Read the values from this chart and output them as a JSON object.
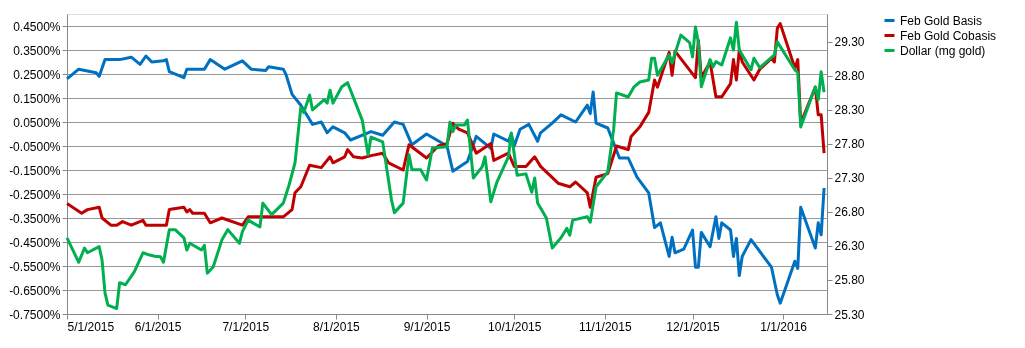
{
  "chart_data": {
    "type": "line",
    "legend": "right",
    "grid": "y",
    "line_style": "solid",
    "marker": "none",
    "xlim": [
      "2015-05-01",
      "2016-01-16"
    ],
    "xticks": [
      {
        "value": "2015-05-01",
        "label": "5/1/2015"
      },
      {
        "value": "2015-06-01",
        "label": "6/1/2015"
      },
      {
        "value": "2015-07-01",
        "label": "7/1/2015"
      },
      {
        "value": "2015-08-01",
        "label": "8/1/2015"
      },
      {
        "value": "2015-09-01",
        "label": "9/1/2015"
      },
      {
        "value": "2015-10-01",
        "label": "10/1/2015"
      },
      {
        "value": "2015-11-01",
        "label": "11/1/2015"
      },
      {
        "value": "2015-12-01",
        "label": "12/1/2015"
      },
      {
        "value": "2016-01-01",
        "label": "1/1/2016"
      }
    ],
    "ylim": [
      -0.75,
      0.5
    ],
    "yticks": [
      {
        "value": 0.45,
        "label": "0.4500%"
      },
      {
        "value": 0.35,
        "label": "0.3500%"
      },
      {
        "value": 0.25,
        "label": "0.2500%"
      },
      {
        "value": 0.15,
        "label": "0.1500%"
      },
      {
        "value": 0.05,
        "label": "0.0500%"
      },
      {
        "value": -0.05,
        "label": "-0.0500%"
      },
      {
        "value": -0.15,
        "label": "-0.1500%"
      },
      {
        "value": -0.25,
        "label": "-0.2500%"
      },
      {
        "value": -0.35,
        "label": "-0.3500%"
      },
      {
        "value": -0.45,
        "label": "-0.4500%"
      },
      {
        "value": -0.55,
        "label": "-0.5500%"
      },
      {
        "value": -0.65,
        "label": "-0.6500%"
      },
      {
        "value": -0.75,
        "label": "-0.7500%"
      }
    ],
    "y2lim": [
      25.3,
      29.71
    ],
    "y2ticks": [
      {
        "value": 25.3,
        "label": "25.30"
      },
      {
        "value": 25.8,
        "label": "25.80"
      },
      {
        "value": 26.3,
        "label": "26.30"
      },
      {
        "value": 26.8,
        "label": "26.80"
      },
      {
        "value": 27.3,
        "label": "27.30"
      },
      {
        "value": 27.8,
        "label": "27.80"
      },
      {
        "value": 28.3,
        "label": "28.30"
      },
      {
        "value": 28.8,
        "label": "28.80"
      },
      {
        "value": 29.3,
        "label": "29.30"
      }
    ],
    "series": [
      {
        "name": "Feb Gold Basis",
        "color": "#0070c0",
        "x": [
          "2015-05-01",
          "2015-05-05",
          "2015-05-11",
          "2015-05-12",
          "2015-05-14",
          "2015-05-19",
          "2015-05-23",
          "2015-05-26",
          "2015-05-28",
          "2015-05-30",
          "2015-06-03",
          "2015-06-04",
          "2015-06-05",
          "2015-06-10",
          "2015-06-11",
          "2015-06-17",
          "2015-06-19",
          "2015-06-24",
          "2015-06-30",
          "2015-07-03",
          "2015-07-08",
          "2015-07-09",
          "2015-07-14",
          "2015-07-15",
          "2015-07-17",
          "2015-07-20",
          "2015-07-24",
          "2015-07-27",
          "2015-07-29",
          "2015-07-31",
          "2015-08-04",
          "2015-08-06",
          "2015-08-13",
          "2015-08-17",
          "2015-08-21",
          "2015-08-24",
          "2015-08-27",
          "2015-09-01",
          "2015-09-08",
          "2015-09-10",
          "2015-09-15",
          "2015-09-18",
          "2015-09-23",
          "2015-09-24",
          "2015-09-29",
          "2015-09-30",
          "2015-10-01",
          "2015-10-03",
          "2015-10-06",
          "2015-10-09",
          "2015-10-10",
          "2015-10-14",
          "2015-10-17",
          "2015-10-22",
          "2015-10-26",
          "2015-10-27",
          "2015-10-28",
          "2015-10-29",
          "2015-11-02",
          "2015-11-06",
          "2015-11-09",
          "2015-11-12",
          "2015-11-16",
          "2015-11-18",
          "2015-11-20",
          "2015-11-23",
          "2015-11-24",
          "2015-11-25",
          "2015-11-28",
          "2015-12-01",
          "2015-12-02",
          "2015-12-03",
          "2015-12-04",
          "2015-12-07",
          "2015-12-09",
          "2015-12-10",
          "2015-12-11",
          "2015-12-14",
          "2015-12-15",
          "2015-12-16",
          "2015-12-17",
          "2015-12-18",
          "2015-12-21",
          "2015-12-28",
          "2015-12-30",
          "2015-12-31",
          "2016-01-05",
          "2016-01-06",
          "2016-01-07",
          "2016-01-12",
          "2016-01-13",
          "2016-01-14",
          "2016-01-15"
        ],
        "values": [
          0.23,
          0.27,
          0.255,
          0.24,
          0.31,
          0.31,
          0.32,
          0.29,
          0.325,
          0.3,
          0.305,
          0.31,
          0.26,
          0.235,
          0.27,
          0.27,
          0.31,
          0.27,
          0.305,
          0.27,
          0.265,
          0.28,
          0.27,
          0.245,
          0.165,
          0.12,
          0.04,
          0.05,
          0.005,
          0.03,
          0.005,
          -0.025,
          0.01,
          -0.005,
          0.05,
          0.04,
          -0.045,
          0,
          -0.05,
          -0.155,
          -0.115,
          -0.01,
          -0.06,
          0,
          -0.03,
          0,
          -0.05,
          0.02,
          0.04,
          -0.03,
          0.005,
          0.045,
          0.08,
          0.05,
          0.12,
          0.085,
          0.175,
          0.045,
          0.025,
          -0.1,
          -0.1,
          -0.18,
          -0.245,
          -0.39,
          -0.37,
          -0.51,
          -0.43,
          -0.495,
          -0.48,
          -0.4,
          -0.555,
          -0.555,
          -0.41,
          -0.47,
          -0.345,
          -0.435,
          -0.37,
          -0.4,
          -0.51,
          -0.435,
          -0.59,
          -0.51,
          -0.44,
          -0.555,
          -0.67,
          -0.705,
          -0.53,
          -0.56,
          -0.305,
          -0.475,
          -0.37,
          -0.42,
          -0.225
        ]
      },
      {
        "name": "Feb Gold Cobasis",
        "color": "#c00000",
        "x": [
          "2015-05-01",
          "2015-05-06",
          "2015-05-08",
          "2015-05-12",
          "2015-05-13",
          "2015-05-16",
          "2015-05-18",
          "2015-05-20",
          "2015-05-23",
          "2015-05-27",
          "2015-05-28",
          "2015-06-03",
          "2015-06-04",
          "2015-06-05",
          "2015-06-10",
          "2015-06-11",
          "2015-06-12",
          "2015-06-13",
          "2015-06-17",
          "2015-06-19",
          "2015-06-23",
          "2015-06-30",
          "2015-07-02",
          "2015-07-14",
          "2015-07-17",
          "2015-07-18",
          "2015-07-20",
          "2015-07-23",
          "2015-07-27",
          "2015-07-30",
          "2015-07-31",
          "2015-08-04",
          "2015-08-05",
          "2015-08-07",
          "2015-08-10",
          "2015-08-13",
          "2015-08-17",
          "2015-08-19",
          "2015-08-24",
          "2015-08-26",
          "2015-09-01",
          "2015-09-05",
          "2015-09-08",
          "2015-09-10",
          "2015-09-12",
          "2015-09-15",
          "2015-09-18",
          "2015-09-23",
          "2015-09-24",
          "2015-09-29",
          "2015-10-01",
          "2015-10-05",
          "2015-10-08",
          "2015-10-10",
          "2015-10-16",
          "2015-10-20",
          "2015-10-22",
          "2015-10-26",
          "2015-10-27",
          "2015-10-29",
          "2015-11-02",
          "2015-11-05",
          "2015-11-09",
          "2015-11-10",
          "2015-11-13",
          "2015-11-16",
          "2015-11-18",
          "2015-11-19",
          "2015-11-21",
          "2015-11-23",
          "2015-11-24",
          "2015-11-25",
          "2015-12-02",
          "2015-12-03",
          "2015-12-04",
          "2015-12-07",
          "2015-12-09",
          "2015-12-11",
          "2015-12-14",
          "2015-12-15",
          "2015-12-16",
          "2015-12-17",
          "2015-12-18",
          "2015-12-22",
          "2015-12-24",
          "2015-12-28",
          "2015-12-29",
          "2015-12-30",
          "2015-12-31",
          "2016-01-05",
          "2016-01-06",
          "2016-01-07",
          "2016-01-12",
          "2016-01-13",
          "2016-01-14",
          "2016-01-15"
        ],
        "values": [
          -0.29,
          -0.33,
          -0.315,
          -0.305,
          -0.35,
          -0.38,
          -0.38,
          -0.365,
          -0.38,
          -0.36,
          -0.38,
          -0.38,
          -0.38,
          -0.315,
          -0.305,
          -0.325,
          -0.315,
          -0.33,
          -0.33,
          -0.37,
          -0.35,
          -0.38,
          -0.345,
          -0.345,
          -0.315,
          -0.245,
          -0.22,
          -0.13,
          -0.14,
          -0.095,
          -0.12,
          -0.095,
          -0.065,
          -0.095,
          -0.1,
          -0.09,
          -0.08,
          -0.12,
          -0.15,
          -0.045,
          -0.1,
          -0.05,
          -0.04,
          0.045,
          0.02,
          0.005,
          -0.08,
          -0.04,
          -0.11,
          -0.08,
          -0.135,
          -0.135,
          -0.095,
          -0.135,
          -0.205,
          -0.22,
          -0.2,
          -0.245,
          -0.305,
          -0.18,
          -0.165,
          -0.05,
          -0.065,
          -0.01,
          0.03,
          0.09,
          0.225,
          0.195,
          0.27,
          0.34,
          0.245,
          0.345,
          0.235,
          0.39,
          0.235,
          0.3,
          0.155,
          0.155,
          0.21,
          0.31,
          0.225,
          0.35,
          0.3,
          0.225,
          0.27,
          0.315,
          0.3,
          0.44,
          0.46,
          0.275,
          0.31,
          0.045,
          0.195,
          0.08,
          0.08,
          -0.08
        ]
      },
      {
        "name": "Dollar (mg gold)",
        "color": "#00b050",
        "axis": "y2",
        "x": [
          "2015-05-01",
          "2015-05-05",
          "2015-05-07",
          "2015-05-08",
          "2015-05-12",
          "2015-05-13",
          "2015-05-14",
          "2015-05-15",
          "2015-05-18",
          "2015-05-19",
          "2015-05-21",
          "2015-05-24",
          "2015-05-27",
          "2015-05-29",
          "2015-05-31",
          "2015-06-02",
          "2015-06-03",
          "2015-06-05",
          "2015-06-07",
          "2015-06-10",
          "2015-06-11",
          "2015-06-12",
          "2015-06-16",
          "2015-06-17",
          "2015-06-18",
          "2015-06-20",
          "2015-06-23",
          "2015-06-25",
          "2015-06-29",
          "2015-06-30",
          "2015-07-02",
          "2015-07-06",
          "2015-07-07",
          "2015-07-10",
          "2015-07-14",
          "2015-07-16",
          "2015-07-18",
          "2015-07-20",
          "2015-07-21",
          "2015-07-23",
          "2015-07-24",
          "2015-07-28",
          "2015-07-29",
          "2015-07-30",
          "2015-07-31",
          "2015-08-03",
          "2015-08-05",
          "2015-08-10",
          "2015-08-12",
          "2015-08-13",
          "2015-08-17",
          "2015-08-20",
          "2015-08-21",
          "2015-08-24",
          "2015-08-26",
          "2015-08-27",
          "2015-08-30",
          "2015-09-01",
          "2015-09-03",
          "2015-09-08",
          "2015-09-09",
          "2015-09-10",
          "2015-09-11",
          "2015-09-14",
          "2015-09-15",
          "2015-09-17",
          "2015-09-20",
          "2015-09-21",
          "2015-09-23",
          "2015-09-25",
          "2015-09-29",
          "2015-09-30",
          "2015-10-02",
          "2015-10-05",
          "2015-10-07",
          "2015-10-08",
          "2015-10-09",
          "2015-10-12",
          "2015-10-14",
          "2015-10-17",
          "2015-10-19",
          "2015-10-20",
          "2015-10-21",
          "2015-10-26",
          "2015-10-27",
          "2015-10-29",
          "2015-11-02",
          "2015-11-04",
          "2015-11-05",
          "2015-11-09",
          "2015-11-11",
          "2015-11-13",
          "2015-11-16",
          "2015-11-17",
          "2015-11-18",
          "2015-11-19",
          "2015-11-23",
          "2015-11-24",
          "2015-11-27",
          "2015-11-30",
          "2015-12-01",
          "2015-12-02",
          "2015-12-03",
          "2015-12-04",
          "2015-12-07",
          "2015-12-08",
          "2015-12-09",
          "2015-12-11",
          "2015-12-14",
          "2015-12-15",
          "2015-12-16",
          "2015-12-17",
          "2015-12-21",
          "2015-12-22",
          "2015-12-24",
          "2015-12-29",
          "2015-12-30",
          "2016-01-05",
          "2016-01-06",
          "2016-01-07",
          "2016-01-12",
          "2016-01-13",
          "2016-01-14",
          "2016-01-15"
        ],
        "values": [
          26.42,
          26.06,
          26.27,
          26.2,
          26.29,
          26.09,
          25.61,
          25.43,
          25.38,
          25.76,
          25.73,
          25.92,
          26.2,
          26.17,
          26.15,
          26.14,
          26.06,
          26.54,
          26.54,
          26.42,
          26.24,
          26.34,
          26.24,
          26.31,
          25.9,
          25.99,
          26.39,
          26.54,
          26.34,
          26.51,
          26.68,
          26.58,
          26.93,
          26.76,
          26.93,
          27.2,
          27.52,
          28.34,
          28.26,
          28.52,
          28.3,
          28.45,
          28.4,
          28.59,
          28.4,
          28.64,
          28.7,
          28.15,
          27.64,
          27.9,
          27.83,
          26.98,
          26.79,
          26.93,
          27.64,
          27.42,
          27.42,
          27.27,
          27.74,
          27.76,
          28.12,
          27.98,
          28.08,
          28.08,
          28.15,
          27.3,
          27.46,
          27.61,
          26.95,
          27.23,
          27.61,
          27.96,
          27.34,
          27.36,
          27.09,
          27.3,
          26.93,
          26.71,
          26.27,
          26.42,
          26.56,
          26.46,
          26.68,
          26.73,
          26.65,
          27.17,
          27.39,
          28.01,
          28.55,
          28.49,
          28.64,
          28.71,
          28.74,
          29.06,
          29.06,
          28.81,
          29.11,
          28.99,
          29.4,
          29.29,
          29.08,
          29.52,
          29.29,
          28.64,
          29.04,
          28.93,
          29.01,
          28.96,
          29.36,
          29.18,
          29.59,
          29.18,
          28.89,
          29.06,
          28.92,
          29.11,
          29.3,
          28.89,
          28.85,
          28.05,
          28.64,
          28.45,
          28.86,
          28.56
        ]
      }
    ]
  }
}
